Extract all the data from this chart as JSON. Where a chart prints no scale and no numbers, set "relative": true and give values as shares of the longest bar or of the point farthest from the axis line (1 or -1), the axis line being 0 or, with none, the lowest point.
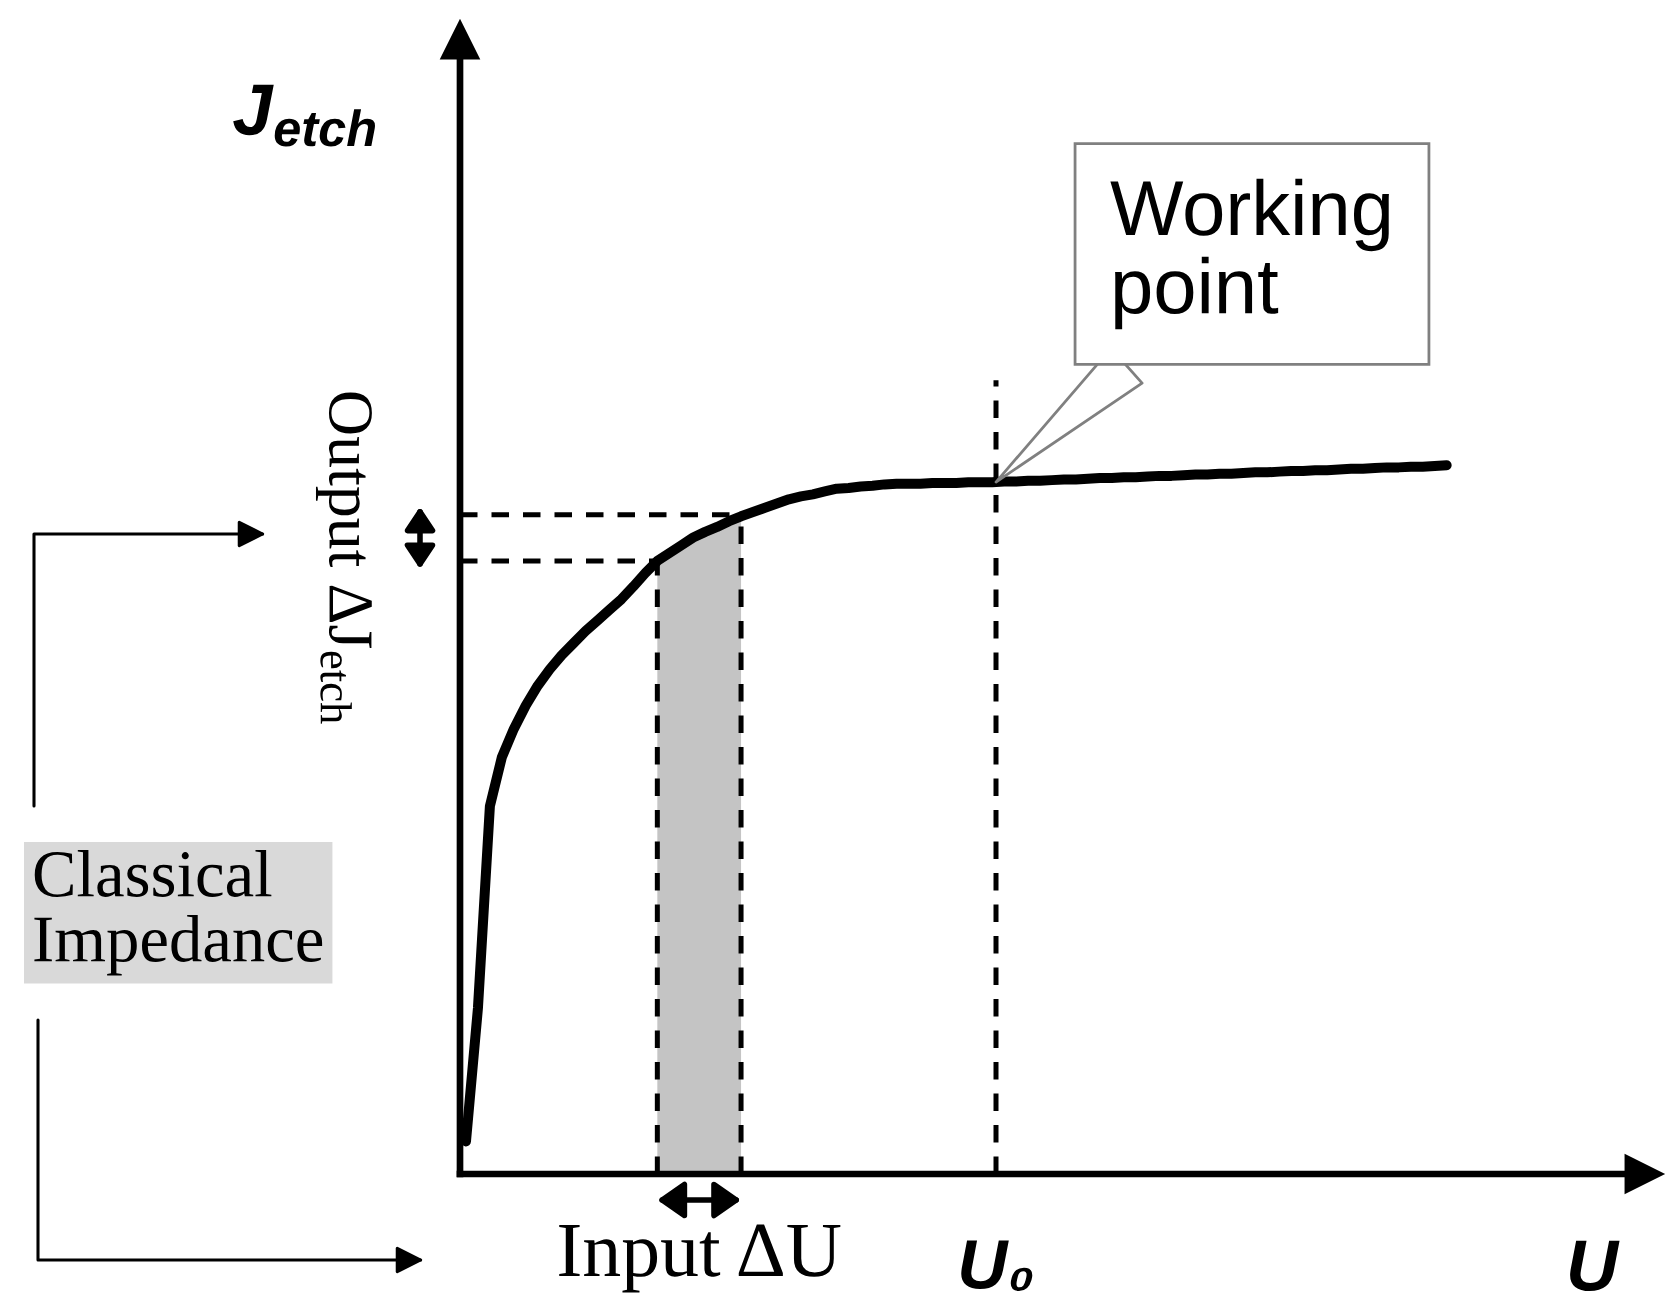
{
  "chart_data": {
    "type": "line",
    "relative": true,
    "xlabel": "U",
    "ylabel": "J$_{etch}$",
    "categories": [
      null,
      null,
      null,
      null,
      null,
      null,
      null,
      null,
      null,
      null,
      null,
      null,
      null,
      null,
      null,
      null,
      null,
      null,
      null,
      null,
      null,
      null,
      null,
      null,
      null,
      null,
      null,
      null,
      null,
      null,
      null,
      null,
      null,
      null,
      null,
      null,
      null,
      null,
      null,
      null,
      null,
      null,
      null,
      null,
      null,
      null,
      null,
      null,
      null,
      null,
      null,
      null,
      null,
      null,
      null,
      null,
      null,
      null,
      null,
      null,
      null,
      null,
      null,
      null,
      null,
      null,
      null,
      null,
      null,
      null,
      null,
      null,
      null,
      null,
      null,
      null,
      null,
      null,
      null,
      null,
      null,
      null,
      null,
      null,
      null,
      null,
      null,
      null,
      null,
      null,
      null,
      null,
      null,
      null,
      null,
      null,
      null,
      null,
      null
    ],
    "series": [
      {
        "color": "#000000",
        "values": [
          0.046,
          0.234,
          0.519,
          0.588,
          0.628,
          0.661,
          0.689,
          0.712,
          0.732,
          0.749,
          0.766,
          0.781,
          0.796,
          0.811,
          0.829,
          0.848,
          0.865,
          0.876,
          0.887,
          0.898,
          0.906,
          0.913,
          0.921,
          0.928,
          0.934,
          0.94,
          0.946,
          0.952,
          0.956,
          0.959,
          0.963,
          0.967,
          0.968,
          0.97,
          0.971,
          0.973,
          0.974,
          0.974,
          0.974,
          0.975,
          0.975,
          0.975,
          0.976,
          0.976,
          0.976,
          0.977,
          0.977,
          0.978,
          0.978,
          0.979,
          0.98,
          0.98,
          0.981,
          0.982,
          0.982,
          0.983,
          0.983,
          0.984,
          0.985,
          0.985,
          0.986,
          0.987,
          0.987,
          0.988,
          0.988,
          0.989,
          0.99,
          0.99,
          0.991,
          0.992,
          0.992,
          0.993,
          0.993,
          0.994,
          0.995,
          0.995,
          0.996,
          0.997,
          0.997,
          0.998,
          0.998,
          0.999,
          1.0,
          null,
          null,
          null,
          null,
          null,
          null,
          null,
          null,
          null,
          null,
          null,
          null,
          null,
          null,
          null,
          null
        ]
      },
      {
        "type": "area",
        "name": "Input ΔU",
        "color": "#c4c4c4",
        "values": [
          null,
          null,
          null,
          null,
          null,
          null,
          null,
          null,
          null,
          null,
          null,
          null,
          null,
          null,
          null,
          null,
          0.865,
          0.876,
          0.887,
          0.898,
          0.906,
          0.913,
          0.921,
          0.928,
          null,
          null,
          null,
          null,
          null,
          null,
          null,
          null,
          null,
          null,
          null,
          null,
          null,
          null,
          null,
          null,
          null,
          null,
          null,
          null,
          null,
          null,
          null,
          null,
          null,
          null,
          null,
          null,
          null,
          null,
          null,
          null,
          null,
          null,
          null,
          null,
          null,
          null,
          null,
          null,
          null,
          null,
          null,
          null,
          null,
          null,
          null,
          null,
          null,
          null,
          null,
          null,
          null,
          null,
          null,
          null,
          null,
          null,
          null,
          null,
          null,
          null,
          null,
          null,
          null,
          null,
          null,
          null,
          null,
          null,
          null,
          null,
          null,
          null,
          null
        ]
      }
    ],
    "ref_lines": [
      {
        "axis": "y",
        "value": 0.93,
        "line_style": "dashed",
        "color": "#000000"
      },
      {
        "axis": "y",
        "value": 0.865,
        "line_style": "dashed",
        "color": "#000000"
      }
    ],
    "annotations": [
      "Working\npoint",
      "U₀",
      "Output ΔJ$_{etch}$",
      "Classical\nImpedance"
    ]
  }
}
